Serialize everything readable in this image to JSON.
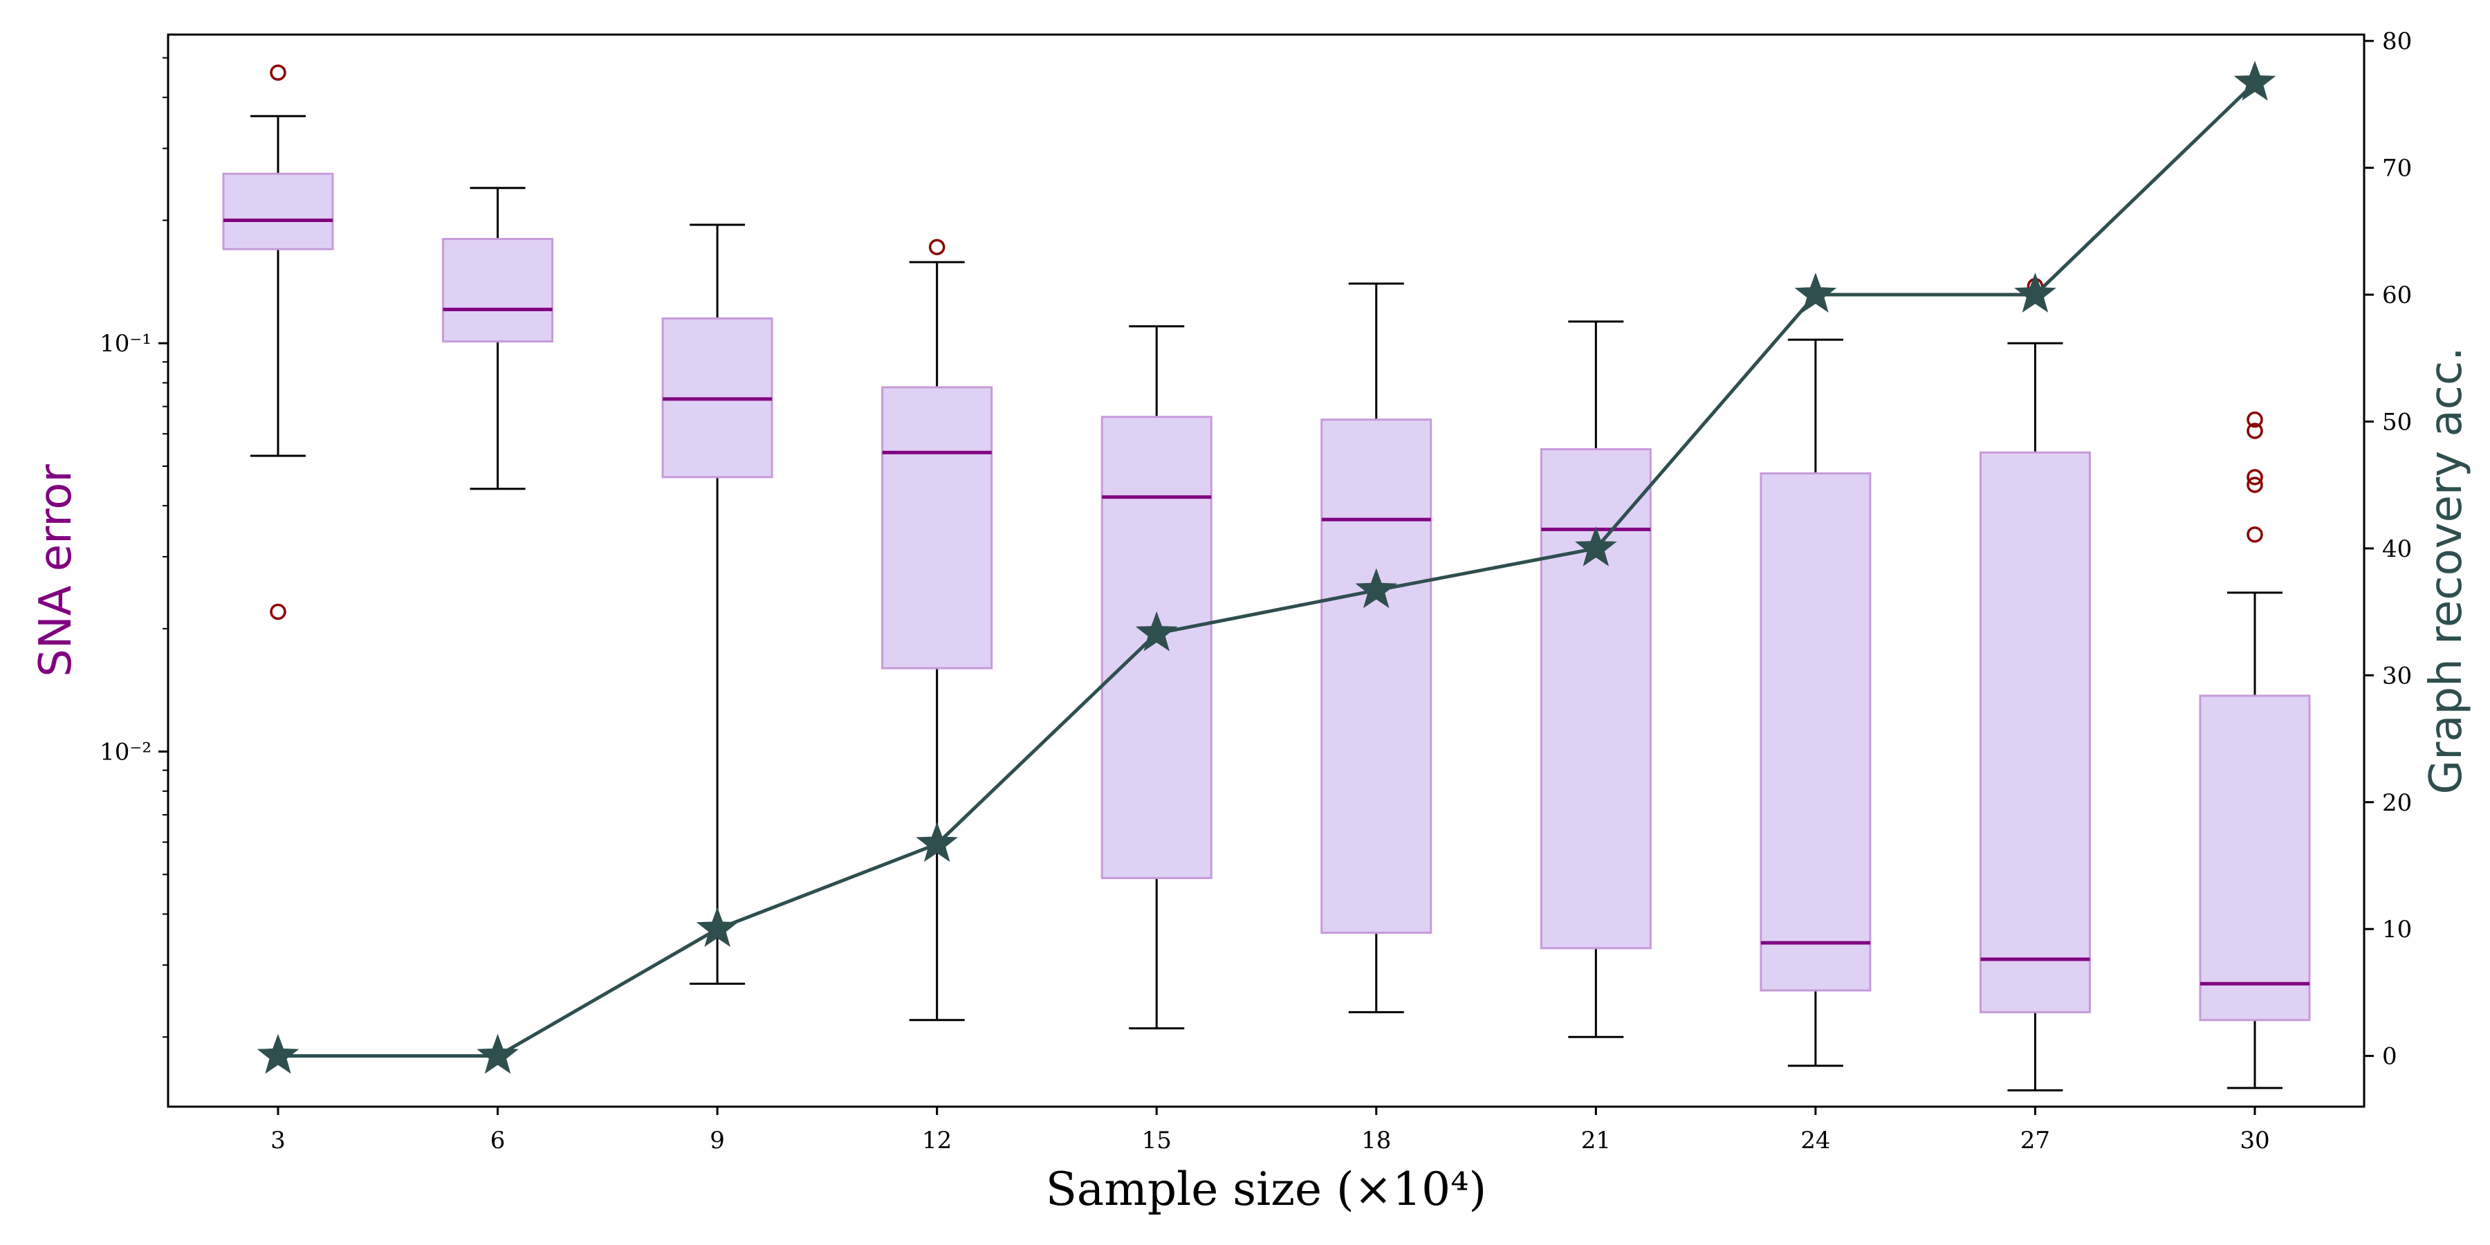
{
  "chart_data": {
    "type": "boxplot+line",
    "categories": [
      "3",
      "6",
      "9",
      "12",
      "15",
      "18",
      "21",
      "24",
      "27",
      "30"
    ],
    "xlabel": "Sample size (×10⁴)",
    "y_left": {
      "label": "SNA error",
      "scale": "log",
      "range": [
        0.00135,
        0.57
      ],
      "ticks": [
        {
          "value": 0.1,
          "label": "10⁻¹"
        },
        {
          "value": 0.01,
          "label": "10⁻²"
        }
      ]
    },
    "y_right": {
      "label": "Graph recovery acc.",
      "scale": "linear",
      "range": [
        -4,
        80.5
      ],
      "ticks": [
        0,
        10,
        20,
        30,
        40,
        50,
        60,
        70,
        80
      ]
    },
    "boxplot": {
      "series_name": "SNA error",
      "box_color": "#dfd1f4",
      "box_edge_color": "#c79ad9",
      "median_color": "#800080",
      "whisker_color": "#000000",
      "outlier_color": "#8b0000",
      "boxes": [
        {
          "x": "3",
          "whislo": 0.053,
          "q1": 0.17,
          "med": 0.2,
          "q3": 0.26,
          "whishi": 0.36,
          "fliers": [
            0.46,
            0.022
          ]
        },
        {
          "x": "6",
          "whislo": 0.044,
          "q1": 0.101,
          "med": 0.121,
          "q3": 0.18,
          "whishi": 0.24,
          "fliers": []
        },
        {
          "x": "9",
          "whislo": 0.0027,
          "q1": 0.047,
          "med": 0.073,
          "q3": 0.115,
          "whishi": 0.195,
          "fliers": []
        },
        {
          "x": "12",
          "whislo": 0.0022,
          "q1": 0.016,
          "med": 0.054,
          "q3": 0.078,
          "whishi": 0.158,
          "fliers": [
            0.172
          ]
        },
        {
          "x": "15",
          "whislo": 0.0021,
          "q1": 0.0049,
          "med": 0.042,
          "q3": 0.066,
          "whishi": 0.11,
          "fliers": []
        },
        {
          "x": "18",
          "whislo": 0.0023,
          "q1": 0.0036,
          "med": 0.037,
          "q3": 0.065,
          "whishi": 0.14,
          "fliers": []
        },
        {
          "x": "21",
          "whislo": 0.002,
          "q1": 0.0033,
          "med": 0.035,
          "q3": 0.055,
          "whishi": 0.113,
          "fliers": []
        },
        {
          "x": "24",
          "whislo": 0.0017,
          "q1": 0.0026,
          "med": 0.0034,
          "q3": 0.048,
          "whishi": 0.102,
          "fliers": []
        },
        {
          "x": "27",
          "whislo": 0.00148,
          "q1": 0.0023,
          "med": 0.0031,
          "q3": 0.054,
          "whishi": 0.1,
          "fliers": [
            0.138
          ]
        },
        {
          "x": "30",
          "whislo": 0.0015,
          "q1": 0.0022,
          "med": 0.0027,
          "q3": 0.0137,
          "whishi": 0.0245,
          "fliers": [
            0.065,
            0.061,
            0.047,
            0.045,
            0.034
          ]
        }
      ]
    },
    "line": {
      "series_name": "Graph recovery acc.",
      "color": "#2f4f4f",
      "marker": "star",
      "values": [
        0,
        0,
        10,
        16.7,
        33.3,
        36.7,
        40,
        60,
        60,
        76.7
      ]
    },
    "grid": false,
    "legend": "none"
  }
}
